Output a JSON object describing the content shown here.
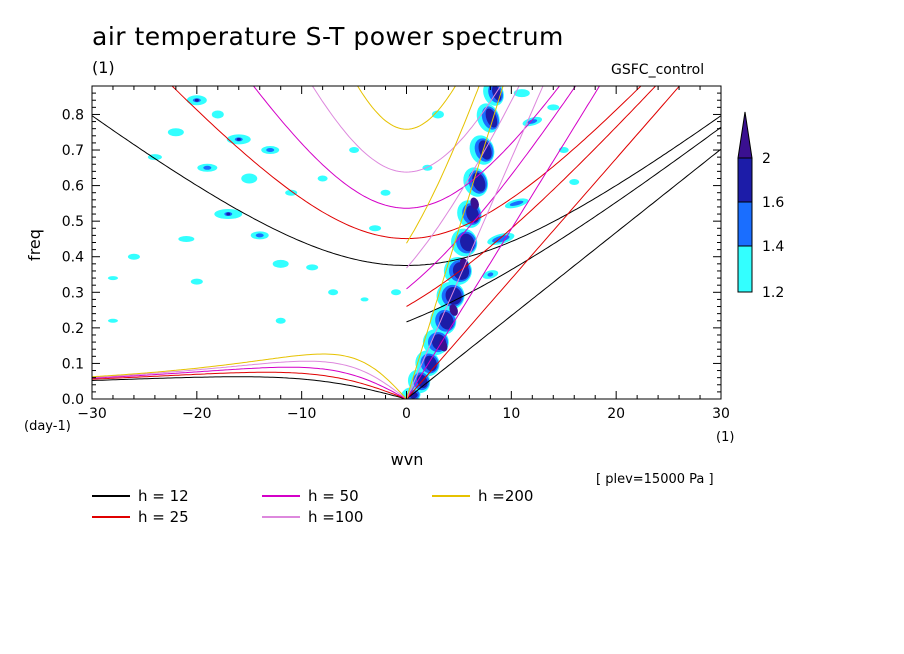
{
  "header": {
    "title": "air temperature S-T power spectrum",
    "subtitle": "(1)",
    "model": "GSFC_control",
    "level_note": "[ plev=15000 Pa ]"
  },
  "chart_data": {
    "type": "heatmap",
    "title": "air temperature S-T power spectrum",
    "xlabel": "wvn",
    "ylabel": "freq",
    "x_unit": "(1)",
    "y_unit": "(day-1)",
    "xlim": [
      -30,
      30
    ],
    "ylim": [
      0,
      0.88
    ],
    "x_ticks": [
      -30,
      -20,
      -10,
      0,
      10,
      20,
      30
    ],
    "y_ticks": [
      0.0,
      0.1,
      0.2,
      0.3,
      0.4,
      0.5,
      0.6,
      0.7,
      0.8
    ],
    "colorbar": {
      "levels": [
        1.2,
        1.4,
        1.6,
        2
      ],
      "colors": [
        "#33ffff",
        "#1a6eff",
        "#1c1ca8",
        "#3a1090"
      ]
    },
    "dispersion_curves": [
      {
        "name": "h = 12",
        "color": "#000000"
      },
      {
        "name": "h = 25",
        "color": "#e00000"
      },
      {
        "name": "h = 50",
        "color": "#d400c8"
      },
      {
        "name": "h =100",
        "color": "#dd88dd"
      },
      {
        "name": "h =200",
        "color": "#e6c200"
      }
    ]
  }
}
